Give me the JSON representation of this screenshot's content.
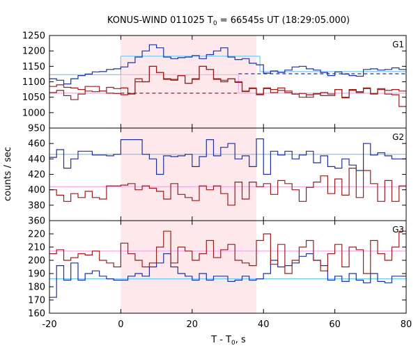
{
  "chart_data": {
    "type": "line",
    "title_main": "KONUS-WIND 011025 T",
    "title_sub": "0",
    "title_rest": " = 66545s UT (18:29:05.000)",
    "xlabel_main": "T - T",
    "xlabel_sub": "0",
    "xlabel_rest": ", s",
    "ylabel": "counts / sec",
    "xlim": [
      -20,
      80
    ],
    "x_ticks": [
      -20,
      0,
      20,
      40,
      60,
      80
    ],
    "shaded_interval": [
      0,
      38
    ],
    "colors": {
      "shade": "#fde8ec",
      "blue": "#1f2fa0",
      "red": "#9b1b1b",
      "cyan": "#6ec8f0",
      "pink": "#f4a7e6"
    },
    "panels": [
      {
        "name": "G1",
        "ylim": [
          950,
          1250
        ],
        "yticks": [
          950,
          1000,
          1050,
          1100,
          1150,
          1200,
          1250
        ],
        "series": [
          {
            "color_key": "blue",
            "x0": -20,
            "dx": 2,
            "values": [
              1110,
              1105,
              1093,
              1110,
              1120,
              1125,
              1132,
              1133,
              1140,
              1142,
              1148,
              1162,
              1180,
              1200,
              1220,
              1210,
              1180,
              1175,
              1178,
              1180,
              1185,
              1175,
              1188,
              1200,
              1210,
              1180,
              1172,
              1175,
              1160,
              1155,
              1128,
              1135,
              1130,
              1138,
              1148,
              1150,
              1142,
              1138,
              1130,
              1120,
              1132,
              1125,
              1120,
              1118,
              1140,
              1142,
              1138,
              1140,
              1145,
              1140
            ]
          },
          {
            "color_key": "red",
            "x0": -20,
            "dx": 2,
            "values": [
              1085,
              1090,
              1082,
              1080,
              1075,
              1070,
              1068,
              1070,
              1063,
              1062,
              1058,
              1060,
              1110,
              1100,
              1150,
              1130,
              1110,
              1108,
              1120,
              1095,
              1110,
              1150,
              1140,
              1110,
              1105,
              1110,
              1100,
              1070,
              1080,
              1060,
              1080,
              1075,
              1080,
              1070,
              1060,
              1050,
              1058,
              1060,
              1065,
              1060,
              1075,
              1050,
              1075,
              1068,
              1078,
              1060,
              1075,
              1072,
              1075,
              1070
            ]
          },
          {
            "color_key": "red",
            "x0": -20,
            "dx": 2,
            "values": [
              1065,
              1072,
              1055,
              1042,
              1060,
              1085,
              1085,
              1070,
              1082,
              1078,
              1080,
              1062,
              1100,
              1100,
              1150,
              1130,
              1108,
              1105,
              1120,
              1095,
              1108,
              1150,
              1140,
              1108,
              1100,
              1110,
              1098,
              1068,
              1078,
              1058,
              1078,
              1065,
              1072,
              1065,
              1060,
              1062,
              1050,
              1062,
              1055,
              1055,
              1075,
              1048,
              1072,
              1065,
              1080,
              1062,
              1078,
              1060,
              1058,
              1020
            ]
          }
        ],
        "levels": [
          {
            "color_key": "cyan",
            "segments": [
              [
                -20,
                0,
                1123
              ],
              [
                0,
                39,
                1183
              ],
              [
                39,
                80,
                1133
              ]
            ]
          },
          {
            "color_key": "blue",
            "dashed": true,
            "segments": [
              [
                33,
                80,
                1126
              ]
            ]
          },
          {
            "color_key": "pink",
            "segments": [
              [
                -20,
                0,
                1063
              ],
              [
                0,
                33,
                1123
              ],
              [
                33,
                80,
                1063
              ]
            ]
          },
          {
            "color_key": "red",
            "dashed": true,
            "segments": [
              [
                0,
                33,
                1063
              ]
            ]
          }
        ]
      },
      {
        "name": "G2",
        "ylim": [
          360,
          480
        ],
        "yticks": [
          360,
          380,
          400,
          420,
          440,
          460
        ],
        "series": [
          {
            "color_key": "blue",
            "x0": -20,
            "dx": 2,
            "values": [
              442,
              452,
              428,
              440,
              450,
              450,
              445,
              445,
              444,
              446,
              465,
              465,
              465,
              446,
              440,
              420,
              444,
              443,
              444,
              446,
              430,
              443,
              465,
              444,
              455,
              460,
              440,
              444,
              430,
              466,
              420,
              450,
              445,
              450,
              440,
              445,
              450,
              435,
              444,
              430,
              428,
              440,
              432,
              425,
              460,
              445,
              448,
              444,
              440,
              440
            ]
          },
          {
            "color_key": "red",
            "x0": -20,
            "dx": 2,
            "values": [
              400,
              393,
              385,
              395,
              390,
              398,
              390,
              388,
              405,
              405,
              406,
              408,
              400,
              405,
              402,
              398,
              388,
              408,
              394,
              390,
              386,
              405,
              400,
              405,
              395,
              380,
              410,
              388,
              410,
              404,
              408,
              394,
              412,
              408,
              400,
              385,
              403,
              410,
              418,
              395,
              414,
              393,
              428,
              390,
              425,
              408,
              385,
              412,
              385,
              405
            ]
          }
        ],
        "levels": [
          {
            "color_key": "cyan",
            "segments": [
              [
                -20,
                80,
                446
              ]
            ]
          },
          {
            "color_key": "pink",
            "segments": [
              [
                -20,
                80,
                404
              ]
            ]
          }
        ]
      },
      {
        "name": "G3",
        "ylim": [
          160,
          230
        ],
        "yticks": [
          160,
          170,
          180,
          190,
          200,
          210,
          220
        ],
        "series": [
          {
            "color_key": "blue",
            "x0": -20,
            "dx": 2,
            "values": [
              172,
              196,
              185,
              198,
              185,
              190,
              192,
              188,
              186,
              185,
              185,
              188,
              190,
              188,
              195,
              198,
              205,
              195,
              190,
              188,
              185,
              190,
              185,
              188,
              188,
              184,
              185,
              188,
              185,
              186,
              190,
              200,
              195,
              196,
              198,
              203,
              205,
              200,
              196,
              185,
              188,
              184,
              190,
              185,
              183,
              190,
              184,
              183,
              188,
              188
            ]
          },
          {
            "color_key": "red",
            "x0": -20,
            "dx": 2,
            "values": [
              205,
              208,
              200,
              202,
              205,
              204,
              207,
              200,
              198,
              195,
              213,
              205,
              200,
              195,
              198,
              210,
              222,
              198,
              210,
              207,
              200,
              205,
              215,
              202,
              208,
              212,
              200,
              198,
              196,
              215,
              220,
              197,
              212,
              190,
              200,
              210,
              215,
              200,
              192,
              205,
              212,
              195,
              210,
              208,
              190,
              215,
              205,
              200,
              210,
              222
            ]
          }
        ],
        "levels": [
          {
            "color_key": "cyan",
            "segments": [
              [
                -20,
                80,
                186
              ]
            ]
          },
          {
            "color_key": "pink",
            "segments": [
              [
                -20,
                80,
                207
              ]
            ]
          }
        ]
      }
    ]
  }
}
